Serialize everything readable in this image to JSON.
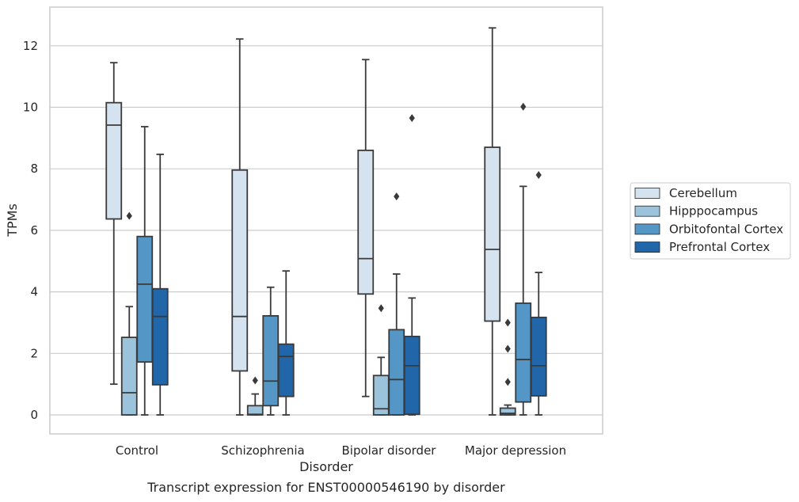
{
  "chart_data": {
    "type": "boxplot",
    "xlabel": "Disorder",
    "ylabel": "TPMs",
    "caption": "Transcript expression for ENST00000546190 by disorder",
    "ylim": [
      -0.6,
      13.2
    ],
    "yticks": [
      0,
      2,
      4,
      6,
      8,
      10,
      12
    ],
    "grid": "horizontal",
    "legend_position": "right",
    "categories": [
      "Control",
      "Schizophrenia",
      "Bipolar disorder",
      "Major depression"
    ],
    "series": [
      {
        "name": "Cerebellum",
        "color": "#d5e3f0",
        "boxes": [
          {
            "whislo": 1.0,
            "q1": 6.37,
            "med": 9.42,
            "q3": 10.15,
            "whishi": 11.45,
            "fliers": []
          },
          {
            "whislo": 0.0,
            "q1": 1.43,
            "med": 3.2,
            "q3": 7.96,
            "whishi": 12.22,
            "fliers": []
          },
          {
            "whislo": 0.6,
            "q1": 3.93,
            "med": 5.08,
            "q3": 8.6,
            "whishi": 11.55,
            "fliers": []
          },
          {
            "whislo": 0.0,
            "q1": 3.05,
            "med": 5.38,
            "q3": 8.7,
            "whishi": 12.58,
            "fliers": []
          }
        ]
      },
      {
        "name": "Hipppocampus",
        "color": "#9bc4dc",
        "boxes": [
          {
            "whislo": 0.0,
            "q1": 0.0,
            "med": 0.72,
            "q3": 2.52,
            "whishi": 3.52,
            "fliers": [
              6.47
            ]
          },
          {
            "whislo": 0.0,
            "q1": 0.0,
            "med": 0.02,
            "q3": 0.3,
            "whishi": 0.68,
            "fliers": [
              1.12
            ]
          },
          {
            "whislo": 0.0,
            "q1": 0.0,
            "med": 0.2,
            "q3": 1.28,
            "whishi": 1.87,
            "fliers": [
              3.47
            ]
          },
          {
            "whislo": 0.0,
            "q1": 0.0,
            "med": 0.05,
            "q3": 0.22,
            "whishi": 0.32,
            "fliers": [
              1.07,
              2.15,
              3.0
            ]
          }
        ]
      },
      {
        "name": "Orbitofontal Cortex",
        "color": "#5496c5",
        "boxes": [
          {
            "whislo": 0.0,
            "q1": 1.72,
            "med": 4.25,
            "q3": 5.8,
            "whishi": 9.37,
            "fliers": []
          },
          {
            "whislo": 0.0,
            "q1": 0.3,
            "med": 1.1,
            "q3": 3.22,
            "whishi": 4.15,
            "fliers": []
          },
          {
            "whislo": 0.0,
            "q1": 0.0,
            "med": 1.15,
            "q3": 2.77,
            "whishi": 4.58,
            "fliers": [
              7.1
            ]
          },
          {
            "whislo": 0.0,
            "q1": 0.42,
            "med": 1.8,
            "q3": 3.63,
            "whishi": 7.43,
            "fliers": [
              10.02
            ]
          }
        ]
      },
      {
        "name": "Prefrontal Cortex",
        "color": "#2166a8",
        "boxes": [
          {
            "whislo": 0.0,
            "q1": 0.98,
            "med": 3.2,
            "q3": 4.1,
            "whishi": 8.47,
            "fliers": []
          },
          {
            "whislo": 0.0,
            "q1": 0.6,
            "med": 1.9,
            "q3": 2.3,
            "whishi": 4.68,
            "fliers": []
          },
          {
            "whislo": 0.0,
            "q1": 0.02,
            "med": 1.6,
            "q3": 2.55,
            "whishi": 3.8,
            "fliers": [
              9.65
            ]
          },
          {
            "whislo": 0.0,
            "q1": 0.62,
            "med": 1.6,
            "q3": 3.17,
            "whishi": 4.63,
            "fliers": [
              7.8
            ]
          }
        ]
      }
    ]
  }
}
